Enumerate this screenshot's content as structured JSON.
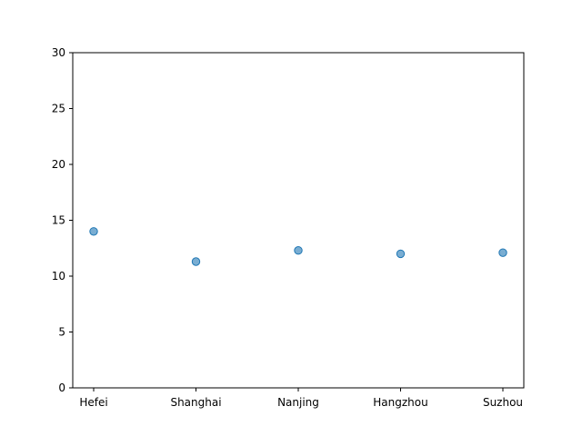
{
  "chart_data": {
    "type": "scatter",
    "title": "",
    "xlabel": "",
    "ylabel": "",
    "categories": [
      "Hefei",
      "Shanghai",
      "Nanjing",
      "Hangzhou",
      "Suzhou"
    ],
    "series": [
      {
        "values": [
          14.0,
          11.3,
          12.3,
          12.0,
          12.1
        ]
      }
    ],
    "ylim": [
      0,
      30
    ],
    "yticks": [
      0,
      5,
      10,
      15,
      20,
      25,
      30
    ],
    "grid": false,
    "marker_color": "#1f77b4"
  }
}
